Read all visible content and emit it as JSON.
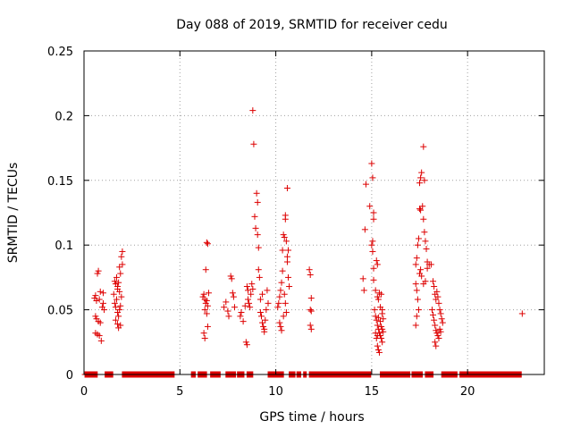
{
  "chart_data": {
    "type": "scatter",
    "title": "Day 088 of 2019, SRMTID for receiver cedu",
    "xlabel": "GPS time / hours",
    "ylabel": "SRMTID / TECUs",
    "xlim": [
      0,
      24
    ],
    "ylim": [
      0,
      0.25
    ],
    "xticks": [
      0,
      5,
      10,
      15,
      20
    ],
    "xtick_labels": [
      "0",
      "5",
      "10",
      "15",
      "20"
    ],
    "yticks": [
      0,
      0.05,
      0.1,
      0.15,
      0.2,
      0.25
    ],
    "ytick_labels": [
      "0",
      "0.05",
      "0.1",
      "0.15",
      "0.2",
      "0.25"
    ],
    "grid": true,
    "marker": "+",
    "color": "#dd0000",
    "zero_ranges": [
      [
        0.05,
        0.7
      ],
      [
        1.1,
        1.5
      ],
      [
        2.0,
        4.7
      ],
      [
        5.6,
        5.8
      ],
      [
        5.95,
        6.4
      ],
      [
        6.6,
        7.1
      ],
      [
        7.4,
        7.9
      ],
      [
        8.0,
        8.35
      ],
      [
        8.5,
        8.8
      ],
      [
        9.6,
        10.4
      ],
      [
        10.7,
        11.0
      ],
      [
        11.1,
        11.3
      ],
      [
        11.45,
        11.6
      ],
      [
        11.75,
        14.95
      ],
      [
        15.45,
        17.0
      ],
      [
        17.1,
        17.65
      ],
      [
        17.8,
        18.2
      ],
      [
        18.65,
        19.45
      ],
      [
        19.6,
        22.8
      ]
    ],
    "series": [
      {
        "name": "SRMTID",
        "points": [
          [
            0.55,
            0.059
          ],
          [
            0.6,
            0.061
          ],
          [
            0.65,
            0.057
          ],
          [
            0.7,
            0.078
          ],
          [
            0.75,
            0.08
          ],
          [
            0.8,
            0.058
          ],
          [
            0.85,
            0.064
          ],
          [
            0.6,
            0.045
          ],
          [
            0.65,
            0.043
          ],
          [
            0.75,
            0.041
          ],
          [
            0.85,
            0.04
          ],
          [
            0.95,
            0.052
          ],
          [
            1.0,
            0.055
          ],
          [
            0.6,
            0.032
          ],
          [
            0.7,
            0.031
          ],
          [
            0.8,
            0.03
          ],
          [
            0.9,
            0.026
          ],
          [
            1.0,
            0.063
          ],
          [
            1.05,
            0.05
          ],
          [
            1.55,
            0.062
          ],
          [
            1.6,
            0.072
          ],
          [
            1.65,
            0.07
          ],
          [
            1.7,
            0.075
          ],
          [
            1.75,
            0.066
          ],
          [
            1.8,
            0.071
          ],
          [
            1.85,
            0.083
          ],
          [
            1.9,
            0.078
          ],
          [
            1.95,
            0.091
          ],
          [
            2.0,
            0.095
          ],
          [
            1.6,
            0.055
          ],
          [
            1.65,
            0.052
          ],
          [
            1.7,
            0.058
          ],
          [
            1.75,
            0.048
          ],
          [
            1.8,
            0.045
          ],
          [
            1.85,
            0.05
          ],
          [
            1.9,
            0.053
          ],
          [
            1.95,
            0.06
          ],
          [
            2.0,
            0.085
          ],
          [
            1.65,
            0.042
          ],
          [
            1.75,
            0.039
          ],
          [
            1.8,
            0.036
          ],
          [
            1.9,
            0.038
          ],
          [
            1.85,
            0.064
          ],
          [
            1.75,
            0.068
          ],
          [
            6.2,
            0.06
          ],
          [
            6.25,
            0.062
          ],
          [
            6.3,
            0.058
          ],
          [
            6.35,
            0.055
          ],
          [
            6.4,
            0.057
          ],
          [
            6.45,
            0.053
          ],
          [
            6.5,
            0.063
          ],
          [
            6.3,
            0.05
          ],
          [
            6.4,
            0.047
          ],
          [
            6.25,
            0.032
          ],
          [
            6.3,
            0.028
          ],
          [
            6.45,
            0.037
          ],
          [
            6.35,
            0.081
          ],
          [
            6.4,
            0.102
          ],
          [
            6.45,
            0.101
          ],
          [
            7.3,
            0.052
          ],
          [
            7.4,
            0.056
          ],
          [
            7.5,
            0.049
          ],
          [
            7.55,
            0.045
          ],
          [
            7.65,
            0.076
          ],
          [
            7.7,
            0.074
          ],
          [
            7.75,
            0.063
          ],
          [
            7.8,
            0.06
          ],
          [
            7.85,
            0.052
          ],
          [
            8.15,
            0.045
          ],
          [
            8.2,
            0.048
          ],
          [
            8.3,
            0.041
          ],
          [
            8.4,
            0.053
          ],
          [
            8.45,
            0.025
          ],
          [
            8.5,
            0.023
          ],
          [
            8.5,
            0.068
          ],
          [
            8.55,
            0.065
          ],
          [
            8.55,
            0.058
          ],
          [
            8.6,
            0.055
          ],
          [
            8.65,
            0.052
          ],
          [
            8.7,
            0.062
          ],
          [
            8.75,
            0.07
          ],
          [
            8.8,
            0.066
          ],
          [
            8.8,
            0.204
          ],
          [
            8.85,
            0.178
          ],
          [
            8.9,
            0.122
          ],
          [
            8.95,
            0.113
          ],
          [
            9.0,
            0.14
          ],
          [
            9.05,
            0.133
          ],
          [
            9.05,
            0.108
          ],
          [
            9.1,
            0.098
          ],
          [
            9.1,
            0.081
          ],
          [
            9.15,
            0.075
          ],
          [
            9.2,
            0.058
          ],
          [
            9.2,
            0.048
          ],
          [
            9.25,
            0.045
          ],
          [
            9.3,
            0.04
          ],
          [
            9.35,
            0.037
          ],
          [
            9.4,
            0.033
          ],
          [
            9.45,
            0.042
          ],
          [
            9.5,
            0.05
          ],
          [
            9.55,
            0.065
          ],
          [
            9.6,
            0.055
          ],
          [
            9.3,
            0.062
          ],
          [
            9.4,
            0.035
          ],
          [
            10.1,
            0.052
          ],
          [
            10.15,
            0.055
          ],
          [
            10.2,
            0.06
          ],
          [
            10.25,
            0.065
          ],
          [
            10.3,
            0.071
          ],
          [
            10.35,
            0.08
          ],
          [
            10.35,
            0.096
          ],
          [
            10.4,
            0.108
          ],
          [
            10.45,
            0.106
          ],
          [
            10.5,
            0.12
          ],
          [
            10.5,
            0.123
          ],
          [
            10.55,
            0.103
          ],
          [
            10.6,
            0.144
          ],
          [
            10.6,
            0.087
          ],
          [
            10.65,
            0.075
          ],
          [
            10.7,
            0.068
          ],
          [
            10.2,
            0.04
          ],
          [
            10.25,
            0.037
          ],
          [
            10.3,
            0.034
          ],
          [
            10.4,
            0.045
          ],
          [
            10.45,
            0.062
          ],
          [
            10.5,
            0.055
          ],
          [
            10.55,
            0.048
          ],
          [
            10.6,
            0.091
          ],
          [
            10.65,
            0.096
          ],
          [
            11.75,
            0.081
          ],
          [
            11.8,
            0.077
          ],
          [
            11.85,
            0.059
          ],
          [
            11.8,
            0.05
          ],
          [
            11.85,
            0.049
          ],
          [
            11.8,
            0.038
          ],
          [
            11.85,
            0.035
          ],
          [
            14.55,
            0.074
          ],
          [
            14.6,
            0.065
          ],
          [
            14.65,
            0.112
          ],
          [
            14.7,
            0.147
          ],
          [
            14.9,
            0.13
          ],
          [
            15.0,
            0.163
          ],
          [
            15.05,
            0.152
          ],
          [
            15.1,
            0.125
          ],
          [
            15.1,
            0.12
          ],
          [
            15.05,
            0.103
          ],
          [
            15.0,
            0.1
          ],
          [
            15.05,
            0.095
          ],
          [
            15.1,
            0.082
          ],
          [
            15.1,
            0.073
          ],
          [
            15.2,
            0.065
          ],
          [
            15.25,
            0.088
          ],
          [
            15.3,
            0.085
          ],
          [
            15.3,
            0.06
          ],
          [
            15.35,
            0.058
          ],
          [
            15.4,
            0.063
          ],
          [
            15.45,
            0.052
          ],
          [
            15.5,
            0.062
          ],
          [
            15.55,
            0.05
          ],
          [
            15.15,
            0.05
          ],
          [
            15.2,
            0.045
          ],
          [
            15.25,
            0.042
          ],
          [
            15.3,
            0.038
          ],
          [
            15.35,
            0.035
          ],
          [
            15.4,
            0.032
          ],
          [
            15.45,
            0.03
          ],
          [
            15.5,
            0.028
          ],
          [
            15.55,
            0.025
          ],
          [
            15.3,
            0.022
          ],
          [
            15.35,
            0.019
          ],
          [
            15.4,
            0.017
          ],
          [
            15.2,
            0.032
          ],
          [
            15.25,
            0.028
          ],
          [
            15.3,
            0.03
          ],
          [
            15.35,
            0.044
          ],
          [
            15.45,
            0.041
          ],
          [
            15.5,
            0.037
          ],
          [
            15.55,
            0.035
          ],
          [
            15.6,
            0.033
          ],
          [
            15.6,
            0.043
          ],
          [
            15.55,
            0.047
          ],
          [
            17.3,
            0.085
          ],
          [
            17.35,
            0.09
          ],
          [
            17.4,
            0.1
          ],
          [
            17.45,
            0.105
          ],
          [
            17.5,
            0.128
          ],
          [
            17.55,
            0.127
          ],
          [
            17.5,
            0.148
          ],
          [
            17.55,
            0.152
          ],
          [
            17.6,
            0.156
          ],
          [
            17.7,
            0.176
          ],
          [
            17.75,
            0.15
          ],
          [
            17.65,
            0.13
          ],
          [
            17.7,
            0.12
          ],
          [
            17.75,
            0.11
          ],
          [
            17.8,
            0.103
          ],
          [
            17.85,
            0.097
          ],
          [
            17.9,
            0.087
          ],
          [
            17.3,
            0.07
          ],
          [
            17.35,
            0.065
          ],
          [
            17.4,
            0.058
          ],
          [
            17.45,
            0.05
          ],
          [
            17.35,
            0.045
          ],
          [
            17.3,
            0.038
          ],
          [
            17.5,
            0.078
          ],
          [
            17.55,
            0.081
          ],
          [
            17.6,
            0.076
          ],
          [
            17.7,
            0.07
          ],
          [
            17.8,
            0.072
          ],
          [
            17.9,
            0.082
          ],
          [
            18.0,
            0.085
          ],
          [
            18.1,
            0.085
          ],
          [
            18.2,
            0.072
          ],
          [
            18.25,
            0.068
          ],
          [
            18.3,
            0.062
          ],
          [
            18.35,
            0.058
          ],
          [
            18.4,
            0.064
          ],
          [
            18.45,
            0.06
          ],
          [
            18.5,
            0.055
          ],
          [
            18.55,
            0.05
          ],
          [
            18.6,
            0.047
          ],
          [
            18.65,
            0.043
          ],
          [
            18.7,
            0.04
          ],
          [
            18.15,
            0.05
          ],
          [
            18.2,
            0.046
          ],
          [
            18.25,
            0.042
          ],
          [
            18.3,
            0.038
          ],
          [
            18.35,
            0.034
          ],
          [
            18.4,
            0.032
          ],
          [
            18.45,
            0.03
          ],
          [
            18.5,
            0.028
          ],
          [
            18.3,
            0.025
          ],
          [
            18.35,
            0.022
          ],
          [
            18.55,
            0.035
          ],
          [
            18.6,
            0.033
          ],
          [
            22.85,
            0.047
          ]
        ]
      }
    ]
  }
}
